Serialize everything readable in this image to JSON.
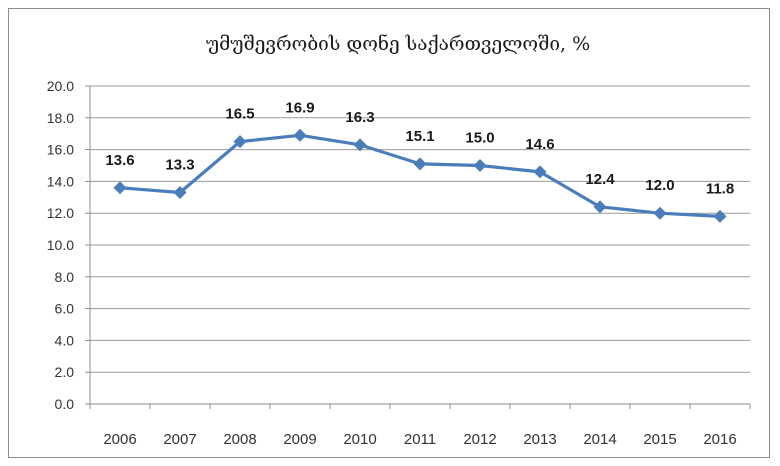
{
  "chart_data": {
    "type": "line",
    "title": "უმუშევრობის დონე საქართველოში, %",
    "xlabel": "",
    "ylabel": "",
    "categories": [
      "2006",
      "2007",
      "2008",
      "2009",
      "2010",
      "2011",
      "2012",
      "2013",
      "2014",
      "2015",
      "2016"
    ],
    "values": [
      13.6,
      13.3,
      16.5,
      16.9,
      16.3,
      15.1,
      15.0,
      14.6,
      12.4,
      12.0,
      11.8
    ],
    "data_labels": [
      "13.6",
      "13.3",
      "16.5",
      "16.9",
      "16.3",
      "15.1",
      "15.0",
      "14.6",
      "12.4",
      "12.0",
      "11.8"
    ],
    "y_ticks": [
      "0.0",
      "2.0",
      "4.0",
      "6.0",
      "8.0",
      "10.0",
      "12.0",
      "14.0",
      "16.0",
      "18.0",
      "20.0"
    ],
    "ylim": [
      0,
      20
    ],
    "y_step": 2,
    "grid": true,
    "legend": "none",
    "line_color": "#4a7ebb",
    "marker": "diamond"
  }
}
